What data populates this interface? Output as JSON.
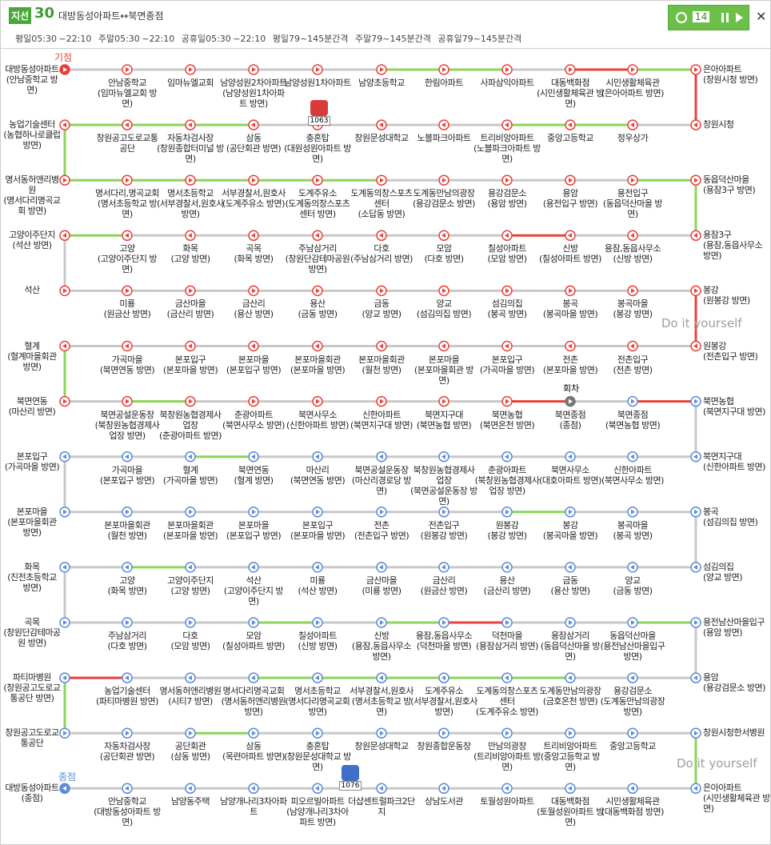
{
  "header": {
    "badge": "지선",
    "number": "30",
    "title": "대방동성아파트↔북면종점",
    "schedule": [
      "평일05:30 ~22:10",
      "주말05:30 ~22:10",
      "공휴일05:30 ~22:10"
    ],
    "interval": [
      "평일79~145분간격",
      "주말79~145분간격",
      "공휴일79~145분간격"
    ],
    "counter": "14"
  },
  "map": {
    "start_label": "기점",
    "end_label": "종점",
    "turn_label": "회차",
    "buses": [
      "1063",
      "1076"
    ],
    "watermarks": [
      "Do it yourself",
      "Do it yourself"
    ],
    "palette": {
      "n": "#c8c8c8",
      "g": "#8cd45a",
      "r": "#e8413c"
    },
    "out_color": "#e8413c",
    "in_color": "#5b8bd6",
    "right_links": "rgrnnng",
    "left_links": "gngnng",
    "rows": [
      {
        "dir": "ltr",
        "phase": "out",
        "segments": "nnnnnggnrg",
        "stops": [
          {
            "name": "대방동성아파트",
            "sub": "(안남중학교 방면)"
          },
          {
            "name": "안남중학교",
            "sub": "(임마뉴엘교회 방면)"
          },
          {
            "name": "임마뉴엘교회"
          },
          {
            "name": "남양성원2차아파트",
            "sub": "(남양성원1차아파트 방면)"
          },
          {
            "name": "남양성원1차아파트"
          },
          {
            "name": "남양초등학교"
          },
          {
            "name": "한림아파트"
          },
          {
            "name": "사파삼익아파트"
          },
          {
            "name": "대동백화점",
            "sub": "(시민생활체육관 방면)"
          },
          {
            "name": "시민생활체육관",
            "sub": "(은아아파트 방면)"
          },
          {
            "name": "은아아파트",
            "sub": "(창원시청 방면)"
          }
        ]
      },
      {
        "dir": "rtl",
        "phase": "out",
        "segments": "gggnnnnggn",
        "stops": [
          {
            "name": "창원시청"
          },
          {
            "name": "정우상가"
          },
          {
            "name": "중앙고등학교"
          },
          {
            "name": "트리비앙아파트",
            "sub": "(노블파크아파트 방면)"
          },
          {
            "name": "노블파크아파트"
          },
          {
            "name": "창원문성대학교"
          },
          {
            "name": "충혼탑",
            "sub": "(대원성원아파트 방면)"
          },
          {
            "name": "삼동",
            "sub": "(공단회관 방면)"
          },
          {
            "name": "자동차검사장",
            "sub": "(창원종합터미널 방면)"
          },
          {
            "name": "창원공고도로교통공단"
          },
          {
            "name": "농업기술센터",
            "sub": "(농협하나로클럽 방면)"
          }
        ]
      },
      {
        "dir": "ltr",
        "phase": "out",
        "segments": "gggggnnnng",
        "stops": [
          {
            "name": "명서동허앤리병원",
            "sub": "(명서다리명곡교회 방면)"
          },
          {
            "name": "명서다리,명곡교회",
            "sub": "(명서초등학교 방면)"
          },
          {
            "name": "명서초등학교",
            "sub": "(서부경찰서,원호사 방면)"
          },
          {
            "name": "서부경찰서,원호사",
            "sub": "(도계주유소 방면)"
          },
          {
            "name": "도계주유소",
            "sub": "(도계동의창스포츠센터 방면)"
          },
          {
            "name": "도계동의창스포츠센터",
            "sub": "(소답동 방면)"
          },
          {
            "name": "도계동만남의광장",
            "sub": "(용강검문소 방면)"
          },
          {
            "name": "용강검문소",
            "sub": "(용암 방면)"
          },
          {
            "name": "용암",
            "sub": "(용전입구 방면)"
          },
          {
            "name": "용전입구",
            "sub": "(동읍덕산마을 방면)"
          },
          {
            "name": "동읍덕산마을",
            "sub": "(용잠3구 방면)"
          }
        ]
      },
      {
        "dir": "rtl",
        "phase": "out",
        "segments": "gnnnnnnrnn",
        "stops": [
          {
            "name": "용잠3구",
            "sub": "(용잠,동읍사무소 방면)"
          },
          {
            "name": "용잠,동읍사무소",
            "sub": "(신방 방면)"
          },
          {
            "name": "신방",
            "sub": "(칠성아파트 방면)"
          },
          {
            "name": "칠성아파트",
            "sub": "(모암 방면)"
          },
          {
            "name": "모암",
            "sub": "(다호 방면)"
          },
          {
            "name": "다호",
            "sub": "(주남삼거리 방면)"
          },
          {
            "name": "주남삼거리",
            "sub": "(창원단감테마공원 방면)"
          },
          {
            "name": "곡목",
            "sub": "(화목 방면)"
          },
          {
            "name": "화목",
            "sub": "(고양 방면)"
          },
          {
            "name": "고양",
            "sub": "(고양이주단지 방면)"
          },
          {
            "name": "고양이주단지",
            "sub": "(석산 방면)"
          }
        ]
      },
      {
        "dir": "ltr",
        "phase": "out",
        "segments": "nnnnnnnnnn",
        "stops": [
          {
            "name": "석산"
          },
          {
            "name": "미룡",
            "sub": "(원금산 방면)"
          },
          {
            "name": "금산마을",
            "sub": "(금산리 방면)"
          },
          {
            "name": "금산리",
            "sub": "(용산 방면)"
          },
          {
            "name": "용산",
            "sub": "(금동 방면)"
          },
          {
            "name": "금동",
            "sub": "(양교 방면)"
          },
          {
            "name": "양교",
            "sub": "(섬김의집 방면)"
          },
          {
            "name": "섬김의집",
            "sub": "(봉곡 방면)"
          },
          {
            "name": "봉곡",
            "sub": "(봉곡마을 방면)"
          },
          {
            "name": "봉곡마을",
            "sub": "(봉강 방면)"
          },
          {
            "name": "봉강",
            "sub": "(원봉강 방면)"
          }
        ]
      },
      {
        "dir": "rtl",
        "phase": "out",
        "segments": "nnnnnnnnnn",
        "stops": [
          {
            "name": "원봉강",
            "sub": "(전촌입구 방면)"
          },
          {
            "name": "전촌입구",
            "sub": "(전촌 방면)"
          },
          {
            "name": "전촌",
            "sub": "(본포마을 방면)"
          },
          {
            "name": "본포입구",
            "sub": "(가곡마을 방면)"
          },
          {
            "name": "본포마을",
            "sub": "(본포마을회관 방면)"
          },
          {
            "name": "본포마을회관",
            "sub": "(월천 방면)"
          },
          {
            "name": "본포마을회관",
            "sub": "(본포마을 방면)"
          },
          {
            "name": "본포마을",
            "sub": "(본포입구 방면)"
          },
          {
            "name": "본포입구",
            "sub": "(본포마을 방면)"
          },
          {
            "name": "가곡마을",
            "sub": "(북면연동 방면)"
          },
          {
            "name": "혈계",
            "sub": "(혈계마을회관 방면)"
          }
        ]
      },
      {
        "dir": "ltr",
        "phase": "out",
        "segments": "ngnnnnnrnr",
        "stops": [
          {
            "name": "북면연동",
            "sub": "(마산리 방면)"
          },
          {
            "name": "북면공설운동장",
            "sub": "(북창원농협경제사업장 방면)"
          },
          {
            "name": "북창원농협경제사업장",
            "sub": "(춘광아파트 방면)"
          },
          {
            "name": "춘광아파트",
            "sub": "(북면사무소 방면)"
          },
          {
            "name": "북면사무소",
            "sub": "(신한아파트 방면)"
          },
          {
            "name": "신한아파트",
            "sub": "(북면지구대 방면)"
          },
          {
            "name": "북면지구대",
            "sub": "(북면농협 방면)"
          },
          {
            "name": "북면농협",
            "sub": "(북면온천 방면)"
          },
          {
            "name": "북면종점",
            "sub": "(종점)"
          },
          {
            "name": "북면종점",
            "sub": "(북면농협 방면)"
          },
          {
            "name": "북면농협",
            "sub": "(북면지구대 방면)"
          }
        ]
      },
      {
        "dir": "rtl",
        "phase": "in",
        "segments": "nngnnnnnnn",
        "stops": [
          {
            "name": "북면지구대",
            "sub": "(신한아파트 방면)"
          },
          {
            "name": "신한아파트",
            "sub": "(북면사무소 방면)"
          },
          {
            "name": "북면사무소",
            "sub": "(대호아파트 방면)"
          },
          {
            "name": "춘광아파트",
            "sub": "(북창원농협경제사업장 방면)"
          },
          {
            "name": "북창원농협경제사업장",
            "sub": "(북면공설운동장 방면)"
          },
          {
            "name": "북면공설운동장",
            "sub": "(마산리경로당 방면)"
          },
          {
            "name": "마산리",
            "sub": "(북면연동 방면)"
          },
          {
            "name": "북면연동",
            "sub": "(혈계 방면)"
          },
          {
            "name": "혈계",
            "sub": "(가곡마을 방면)"
          },
          {
            "name": "가곡마을",
            "sub": "(본포입구 방면)"
          },
          {
            "name": "본포입구",
            "sub": "(가곡마을 방면)"
          }
        ]
      },
      {
        "dir": "ltr",
        "phase": "in",
        "segments": "nnnnnnngnn",
        "stops": [
          {
            "name": "본포마을",
            "sub": "(본포마을회관 방면)"
          },
          {
            "name": "본포마을회관",
            "sub": "(월천 방면)"
          },
          {
            "name": "본포마을회관",
            "sub": "(본포마을 방면)"
          },
          {
            "name": "본포마을",
            "sub": "(본포입구 방면)"
          },
          {
            "name": "본포입구",
            "sub": "(본포마을 방면)"
          },
          {
            "name": "전촌",
            "sub": "(전촌입구 방면)"
          },
          {
            "name": "전촌입구",
            "sub": "(원봉강 방면)"
          },
          {
            "name": "원봉강",
            "sub": "(봉강 방면)"
          },
          {
            "name": "봉강",
            "sub": "(봉곡마을 방면)"
          },
          {
            "name": "봉곡마을",
            "sub": "(봉곡 방면)"
          },
          {
            "name": "봉곡",
            "sub": "(섬김의집 방면)"
          }
        ]
      },
      {
        "dir": "rtl",
        "phase": "in",
        "segments": "ngnnnnnnnn",
        "stops": [
          {
            "name": "섬김의집",
            "sub": "(양교 방면)"
          },
          {
            "name": "양교",
            "sub": "(금동 방면)"
          },
          {
            "name": "금동",
            "sub": "(용산 방면)"
          },
          {
            "name": "용산",
            "sub": "(금산리 방면)"
          },
          {
            "name": "금산리",
            "sub": "(원금산 방면)"
          },
          {
            "name": "금산마을",
            "sub": "(미룡 방면)"
          },
          {
            "name": "미룡",
            "sub": "(석산 방면)"
          },
          {
            "name": "석산",
            "sub": "(고양이주단지 방면)"
          },
          {
            "name": "고양이주단지",
            "sub": "(고양 방면)"
          },
          {
            "name": "고양",
            "sub": "(화목 방면)"
          },
          {
            "name": "화목",
            "sub": "(진전초등학교 방면)"
          }
        ]
      },
      {
        "dir": "ltr",
        "phase": "in",
        "segments": "nnngngrnng",
        "stops": [
          {
            "name": "곡목",
            "sub": "(창원단감테마공원 방면)"
          },
          {
            "name": "주남삼거리",
            "sub": "(다호 방면)"
          },
          {
            "name": "다호",
            "sub": "(모암 방면)"
          },
          {
            "name": "모암",
            "sub": "(칠성아파트 방면)"
          },
          {
            "name": "칠성아파트",
            "sub": "(신방 방면)"
          },
          {
            "name": "신방",
            "sub": "(용잠,동읍사무소 방면)"
          },
          {
            "name": "용잠,동읍사무소",
            "sub": "(덕천마을 방면)"
          },
          {
            "name": "덕천마을",
            "sub": "(용잠삼거리 방면)"
          },
          {
            "name": "용잠삼거리",
            "sub": "(동읍덕산마을 방면)"
          },
          {
            "name": "동읍덕산마을",
            "sub": "(용전남산마을입구 방면)"
          },
          {
            "name": "용전남산마을입구",
            "sub": "(용암 방면)"
          }
        ]
      },
      {
        "dir": "rtl",
        "phase": "in",
        "segments": "rnngggggnn",
        "stops": [
          {
            "name": "용암",
            "sub": "(용강검문소 방면)"
          },
          {
            "name": "용강검문소",
            "sub": "(도계동만남의광장 방면)"
          },
          {
            "name": "도계동만남의광장",
            "sub": "(금호온천 방면)"
          },
          {
            "name": "도계동의창스포츠센터",
            "sub": "(도계주유소 방면)"
          },
          {
            "name": "도계주유소",
            "sub": "(서부경찰서,원호사 방면)"
          },
          {
            "name": "서부경찰서,원호사",
            "sub": "(명서초등학교 방면)"
          },
          {
            "name": "명서초등학교",
            "sub": "(명서다리명곡교회 방면)"
          },
          {
            "name": "명서다리명곡교회",
            "sub": "(명서동허앤리병원 방면)"
          },
          {
            "name": "명서동허앤리병원",
            "sub": "(시티7 방면)"
          },
          {
            "name": "농업기술센터",
            "sub": "(파티마병원 방면)"
          },
          {
            "name": "파티마병원",
            "sub": "(창원공고도로교통공단 방면)"
          }
        ]
      },
      {
        "dir": "ltr",
        "phase": "in",
        "segments": "nngnnnnnnn",
        "stops": [
          {
            "name": "창원공고도로교통공단"
          },
          {
            "name": "자동차검사장",
            "sub": "(공단회관 방면)"
          },
          {
            "name": "공단회관",
            "sub": "(삼동 방면)"
          },
          {
            "name": "삼동",
            "sub": "(목련아파트 방면)"
          },
          {
            "name": "충혼탑",
            "sub": "(창원문성대학교 방면)"
          },
          {
            "name": "창원문성대학교"
          },
          {
            "name": "창원종합운동장"
          },
          {
            "name": "만남의광장",
            "sub": "(트리비앙아파트 방면)"
          },
          {
            "name": "트리비앙아파트",
            "sub": "(중앙고등학교 방면)"
          },
          {
            "name": "중앙고등학교"
          },
          {
            "name": "창원시청한서병원"
          }
        ]
      },
      {
        "dir": "rtl",
        "phase": "in",
        "segments": "nnnnnnnnnn",
        "stops": [
          {
            "name": "은아아파트",
            "sub": "(시민생활체육관 방면)"
          },
          {
            "name": "시민생활체육관",
            "sub": "(대동백화점 방면)"
          },
          {
            "name": "대동백화점",
            "sub": "(토월성원아파트 방면)"
          },
          {
            "name": "토월성원아파트"
          },
          {
            "name": "상남도서관"
          },
          {
            "name": "더샵센트럴파크2단지"
          },
          {
            "name": "피오르빌아파트",
            "sub": "(남양개나리3차아파트 방면)"
          },
          {
            "name": "남양개나리3차아파트"
          },
          {
            "name": "남양동주택"
          },
          {
            "name": "안남중학교",
            "sub": "(대방동성아파트 방면)"
          },
          {
            "name": "대방동성아파트",
            "sub": "(종점)"
          }
        ]
      }
    ]
  }
}
